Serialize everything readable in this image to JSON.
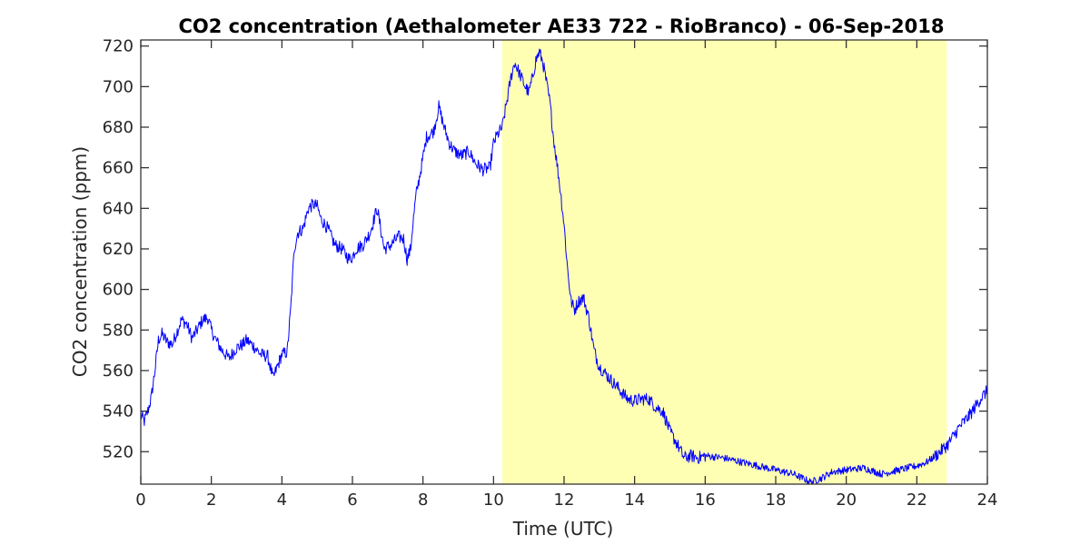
{
  "chart_data": {
    "type": "line",
    "title": "CO2 concentration (Aethalometer AE33 722 - RioBranco) - 06-Sep-2018",
    "xlabel": "Time (UTC)",
    "ylabel": "CO2 concentration (ppm)",
    "xlim": [
      0,
      24
    ],
    "ylim": [
      504,
      723
    ],
    "xticks": [
      0,
      2,
      4,
      6,
      8,
      10,
      12,
      14,
      16,
      18,
      20,
      22,
      24
    ],
    "yticks": [
      520,
      540,
      560,
      580,
      600,
      620,
      640,
      660,
      680,
      700,
      720
    ],
    "grid": false,
    "legend": "none",
    "highlight_region": {
      "x_start": 10.25,
      "x_end": 22.85,
      "color": "#ffffb3"
    },
    "line_color": "#0000ff",
    "series": [
      {
        "x": [
          0,
          0.1,
          0.2,
          0.3,
          0.4,
          0.5,
          0.6,
          0.75,
          0.9,
          1.0,
          1.15,
          1.3,
          1.45,
          1.6,
          1.75,
          1.9,
          2.0,
          2.1,
          2.3,
          2.5,
          2.7,
          2.9,
          3.0,
          3.2,
          3.4,
          3.6,
          3.75,
          3.85,
          4.0,
          4.15,
          4.25,
          4.35,
          4.45,
          4.6,
          4.75,
          4.9,
          5.0,
          5.1,
          5.3,
          5.5,
          5.7,
          5.9,
          6.0,
          6.1,
          6.3,
          6.5,
          6.7,
          6.8,
          6.9,
          7.1,
          7.3,
          7.45,
          7.55,
          7.65,
          7.7,
          7.8,
          7.95,
          8.1,
          8.3,
          8.45,
          8.6,
          8.75,
          8.9,
          9.1,
          9.3,
          9.5,
          9.7,
          9.9,
          10.0,
          10.1,
          10.25,
          10.35,
          10.5,
          10.6,
          10.75,
          10.9,
          11.0,
          11.1,
          11.2,
          11.3,
          11.4,
          11.5,
          11.6,
          11.7,
          11.8,
          11.9,
          12.0,
          12.1,
          12.2,
          12.3,
          12.4,
          12.55,
          12.7,
          12.85,
          13.0,
          13.2,
          13.4,
          13.6,
          13.8,
          14.0,
          14.2,
          14.4,
          14.6,
          14.8,
          15.0,
          15.2,
          15.4,
          15.6,
          15.8,
          16.0,
          16.5,
          17.0,
          17.5,
          18.0,
          18.5,
          19.0,
          19.3,
          19.6,
          20.0,
          20.5,
          21.0,
          21.5,
          22.0,
          22.3,
          22.6,
          22.9,
          23.2,
          23.5,
          23.8,
          24.0
        ],
        "y": [
          538,
          535,
          540,
          547,
          560,
          575,
          578,
          574,
          573,
          578,
          585,
          583,
          576,
          580,
          585,
          586,
          580,
          576,
          570,
          566,
          571,
          573,
          575,
          572,
          568,
          567,
          556,
          561,
          568,
          569,
          590,
          620,
          628,
          630,
          640,
          642,
          641,
          635,
          630,
          622,
          620,
          615,
          616,
          620,
          622,
          628,
          640,
          630,
          620,
          622,
          626,
          625,
          615,
          620,
          630,
          646,
          660,
          675,
          678,
          690,
          680,
          672,
          668,
          666,
          668,
          662,
          659,
          660,
          672,
          676,
          680,
          690,
          705,
          712,
          706,
          700,
          697,
          704,
          713,
          717,
          712,
          702,
          692,
          675,
          662,
          648,
          632,
          610,
          594,
          590,
          594,
          596,
          586,
          570,
          562,
          558,
          554,
          550,
          546,
          545,
          546,
          546,
          542,
          540,
          530,
          524,
          517,
          518,
          517,
          518,
          517,
          515,
          513,
          511,
          509,
          505,
          507,
          510,
          511,
          512,
          509,
          511,
          513,
          515,
          519,
          524,
          532,
          538,
          546,
          550
        ]
      }
    ]
  }
}
